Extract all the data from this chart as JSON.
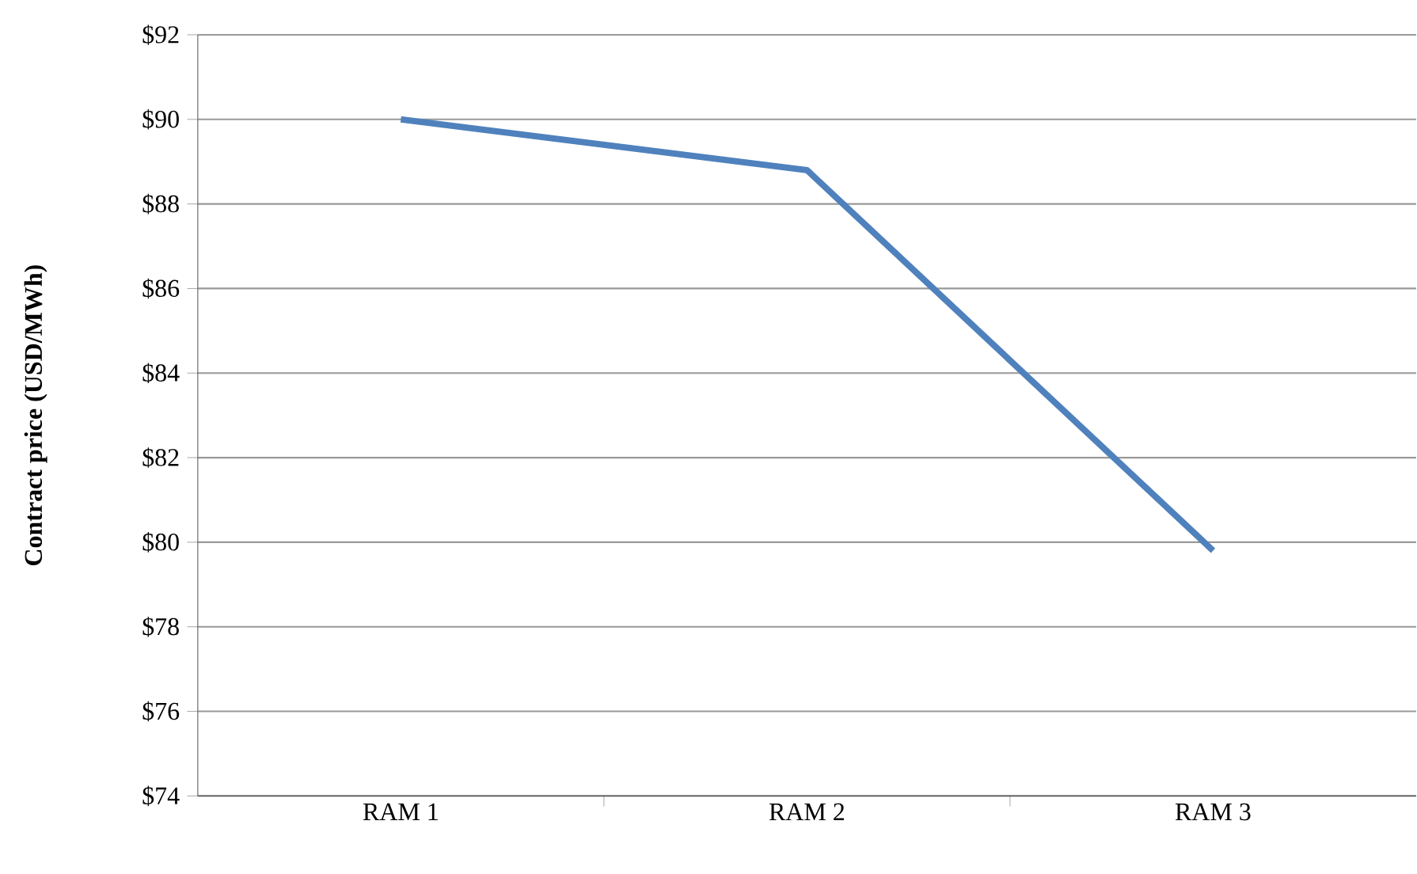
{
  "chart_data": {
    "type": "line",
    "ylabel": "**Contract price (USD/MWh)**",
    "categories": [
      "RAM 1",
      "RAM 2",
      "RAM 3"
    ],
    "series": [
      {
        "color": "#4f81bd",
        "values": [
          90,
          88.8,
          79.8
        ]
      }
    ],
    "ylim": [
      74,
      92
    ],
    "yticks": [
      {
        "value": 74,
        "label": "$74"
      },
      {
        "value": 76,
        "label": "$76"
      },
      {
        "value": 78,
        "label": "$78"
      },
      {
        "value": 80,
        "label": "$80"
      },
      {
        "value": 82,
        "label": "$82"
      },
      {
        "value": 84,
        "label": "$84"
      },
      {
        "value": 86,
        "label": "$86"
      },
      {
        "value": 88,
        "label": "$88"
      },
      {
        "value": 90,
        "label": "$90"
      },
      {
        "value": 92,
        "label": "$92"
      }
    ],
    "grid": "y",
    "marker": "none",
    "line_style": "solid"
  }
}
